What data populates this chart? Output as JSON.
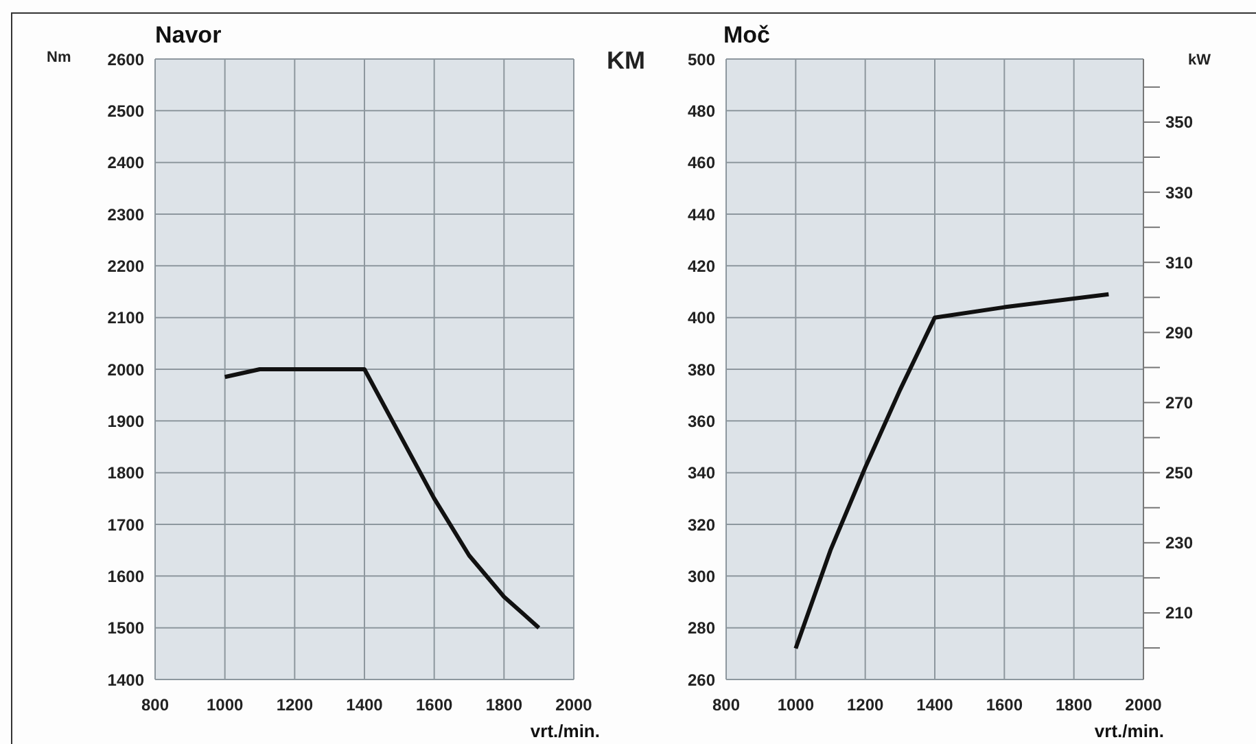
{
  "chart_data": [
    {
      "type": "line",
      "title": "Navor",
      "ylabel": "Nm",
      "xlabel": "vrt./min.",
      "xlim": [
        800,
        2000
      ],
      "xticks": [
        800,
        1000,
        1200,
        1400,
        1600,
        1800,
        2000
      ],
      "ylim": [
        1400,
        2600
      ],
      "yticks": [
        1400,
        1500,
        1600,
        1700,
        1800,
        1900,
        2000,
        2100,
        2200,
        2300,
        2400,
        2500,
        2600
      ],
      "grid": true,
      "legend": false,
      "marker": "none",
      "line_style": "solid",
      "series": [
        {
          "color": "#111111",
          "x": [
            1000,
            1100,
            1400,
            1500,
            1600,
            1700,
            1800,
            1900
          ],
          "values": [
            1985,
            2000,
            2000,
            1875,
            1750,
            1640,
            1560,
            1500
          ]
        }
      ]
    },
    {
      "type": "line",
      "title": "Moč",
      "ylabel": "KM",
      "y2label": "kW",
      "xlabel": "vrt./min.",
      "xlim": [
        800,
        2000
      ],
      "xticks": [
        800,
        1000,
        1200,
        1400,
        1600,
        1800,
        2000
      ],
      "ylim": [
        260,
        500
      ],
      "yticks": [
        260,
        280,
        300,
        320,
        340,
        360,
        380,
        400,
        420,
        440,
        460,
        480,
        500
      ],
      "y2lim": [
        191,
        368
      ],
      "y2ticks": [
        {
          "value": 200,
          "label": null
        },
        210,
        {
          "value": 220,
          "label": null
        },
        230,
        {
          "value": 240,
          "label": null
        },
        250,
        {
          "value": 260,
          "label": null
        },
        270,
        {
          "value": 280,
          "label": null
        },
        290,
        {
          "value": 300,
          "label": null
        },
        310,
        {
          "value": 320,
          "label": null
        },
        330,
        {
          "value": 340,
          "label": null
        },
        350,
        {
          "value": 360,
          "label": null
        }
      ],
      "grid": true,
      "legend": false,
      "marker": "none",
      "line_style": "solid",
      "series": [
        {
          "color": "#111111",
          "x": [
            1000,
            1100,
            1200,
            1300,
            1400,
            1600,
            1900
          ],
          "values": [
            272,
            310,
            342,
            372,
            400,
            404,
            409
          ]
        }
      ]
    }
  ]
}
